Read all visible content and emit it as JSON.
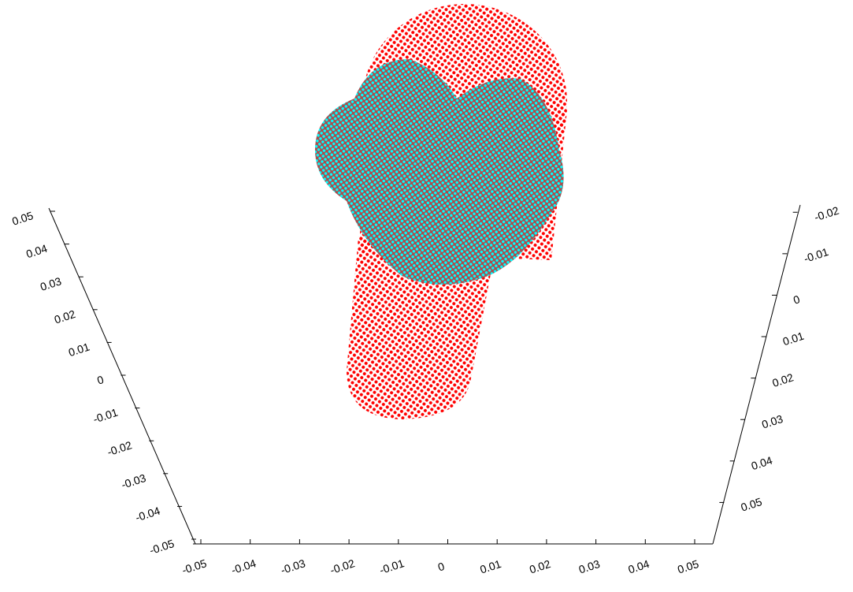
{
  "chart_data": {
    "type": "scatter3d",
    "point_colors": [
      "#ff0000",
      "#00ffff"
    ],
    "xlim": [
      -0.05,
      0.05
    ],
    "xticks": [
      -0.05,
      -0.04,
      -0.03,
      -0.02,
      -0.01,
      0,
      0.01,
      0.02,
      0.03,
      0.04,
      0.05
    ],
    "ylim": [
      -0.05,
      0.05
    ],
    "yticks": [
      -0.05,
      -0.04,
      -0.03,
      -0.02,
      -0.01,
      0,
      0.01,
      0.02,
      0.03,
      0.04,
      0.05
    ],
    "zlim": [
      -0.021,
      0.06
    ],
    "zticks": [
      -0.02,
      -0.01,
      0,
      0.01,
      0.02,
      0.03,
      0.04,
      0.05
    ]
  }
}
